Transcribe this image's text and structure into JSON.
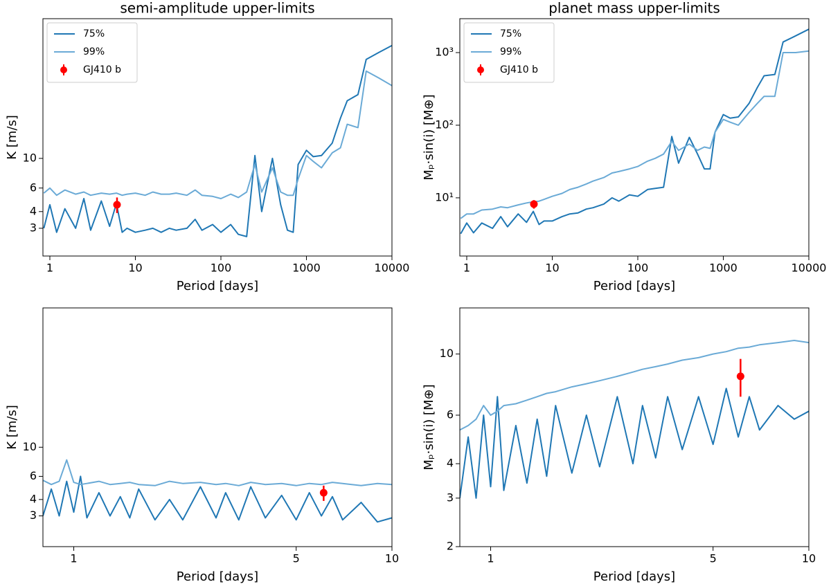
{
  "chart_data": [
    {
      "type": "line",
      "title": "semi-amplitude upper-limits",
      "xlabel": "Period [days]",
      "ylabel": "K [m/s]",
      "log": true,
      "legend": "upper left",
      "xlim": [
        0.83,
        10000
      ],
      "ylim": [
        1.86,
        111
      ],
      "xticks": [
        1,
        10,
        100,
        1000,
        10000
      ],
      "yticks": [
        3,
        4,
        6,
        10
      ],
      "x": [
        0.85,
        1,
        1.2,
        1.5,
        2,
        2.5,
        3,
        4,
        5,
        6,
        7,
        8,
        10,
        13,
        16,
        20,
        25,
        30,
        40,
        50,
        60,
        80,
        100,
        130,
        160,
        200,
        250,
        300,
        400,
        500,
        600,
        700,
        800,
        1000,
        1200,
        1500,
        2000,
        2500,
        3000,
        4000,
        5000,
        7000,
        10000
      ],
      "series": [
        {
          "name": "75%",
          "color": "#1f77b4",
          "values": [
            3.0,
            4.5,
            2.8,
            4.2,
            3.0,
            5.0,
            2.9,
            4.8,
            3.1,
            4.6,
            2.8,
            3.0,
            2.8,
            2.9,
            3.0,
            2.8,
            3.0,
            2.9,
            3.0,
            3.5,
            2.9,
            3.2,
            2.8,
            3.2,
            2.7,
            2.6,
            10.5,
            4.0,
            10,
            4.5,
            2.9,
            2.8,
            9,
            11.5,
            10.3,
            10.5,
            13,
            20,
            27,
            30,
            55,
            62,
            70
          ]
        },
        {
          "name": "99%",
          "color": "#6aaad6",
          "values": [
            5.5,
            6,
            5.3,
            5.8,
            5.4,
            5.6,
            5.3,
            5.5,
            5.4,
            5.5,
            5.3,
            5.4,
            5.5,
            5.3,
            5.6,
            5.4,
            5.4,
            5.5,
            5.3,
            5.8,
            5.3,
            5.2,
            5.0,
            5.4,
            5.1,
            5.6,
            9,
            5.6,
            8.5,
            5.6,
            5.3,
            5.3,
            7,
            10.5,
            9.5,
            8.5,
            11,
            12,
            18,
            17,
            45,
            40,
            35
          ]
        },
        {
          "name": "GJ410 b",
          "color": "#ff0000",
          "type": "errorbar",
          "x": [
            6.1
          ],
          "values": [
            4.5
          ],
          "errors": [
            0.6
          ]
        }
      ]
    },
    {
      "type": "line",
      "title": "planet mass upper-limits",
      "xlabel": "Period [days]",
      "ylabel": "Mₚ·sin(i) [M⊕]",
      "log": true,
      "legend": "upper left",
      "xlim": [
        0.83,
        10000
      ],
      "ylim": [
        1.58,
        2930
      ],
      "xticks": [
        1,
        10,
        100,
        1000,
        10000
      ],
      "yticks": [
        {
          "value": 10,
          "label": "10¹"
        },
        {
          "value": 100,
          "label": "10²"
        },
        {
          "value": 1000,
          "label": "10³"
        }
      ],
      "x": [
        0.85,
        1,
        1.2,
        1.5,
        2,
        2.5,
        3,
        4,
        5,
        6,
        7,
        8,
        10,
        13,
        16,
        20,
        25,
        30,
        40,
        50,
        60,
        80,
        100,
        130,
        160,
        200,
        250,
        300,
        400,
        500,
        600,
        700,
        800,
        1000,
        1200,
        1500,
        2000,
        2500,
        3000,
        4000,
        5000,
        7000,
        10000
      ],
      "series": [
        {
          "name": "75%",
          "color": "#1f77b4",
          "values": [
            3.2,
            4.5,
            3.3,
            4.5,
            3.8,
            5.5,
            4,
            6,
            4.6,
            6.5,
            4.3,
            4.8,
            4.8,
            5.5,
            6,
            6.2,
            7,
            7.3,
            8.2,
            10,
            9,
            11,
            10.5,
            13,
            13.5,
            14,
            70,
            30,
            68,
            40,
            25,
            25,
            80,
            140,
            125,
            130,
            200,
            330,
            480,
            500,
            1400,
            1700,
            2100
          ]
        },
        {
          "name": "99%",
          "color": "#6aaad6",
          "values": [
            5.2,
            6,
            6,
            6.8,
            7,
            7.5,
            7.3,
            8,
            8.5,
            8.8,
            9,
            9.5,
            10.5,
            11.5,
            13,
            14,
            15.5,
            17,
            19,
            22,
            23,
            25,
            27,
            32,
            35,
            40,
            60,
            45,
            55,
            45,
            50,
            48,
            80,
            120,
            110,
            100,
            150,
            200,
            250,
            250,
            1000,
            1000,
            1050
          ]
        },
        {
          "name": "GJ410 b",
          "color": "#ff0000",
          "type": "errorbar",
          "x": [
            6.1
          ],
          "values": [
            8.2
          ],
          "errors": [
            1.1
          ]
        }
      ]
    },
    {
      "type": "line",
      "xlabel": "Period [days]",
      "ylabel": "K [m/s]",
      "log": true,
      "xlim": [
        0.8,
        10
      ],
      "ylim": [
        1.75,
        115
      ],
      "xticks": [
        1,
        5,
        10
      ],
      "yticks": [
        3,
        4,
        6,
        10
      ],
      "x": [
        0.8,
        0.85,
        0.9,
        0.95,
        1,
        1.05,
        1.1,
        1.2,
        1.3,
        1.4,
        1.5,
        1.6,
        1.8,
        2,
        2.2,
        2.5,
        2.8,
        3,
        3.3,
        3.6,
        4,
        4.5,
        5,
        5.5,
        6,
        6.5,
        7,
        8,
        9,
        10
      ],
      "series": [
        {
          "color": "#1f77b4",
          "values": [
            3,
            4.8,
            3,
            5.5,
            3.2,
            6,
            2.9,
            4.5,
            3,
            4.2,
            2.9,
            4.8,
            2.8,
            4,
            2.8,
            5,
            2.9,
            4.5,
            2.8,
            5,
            2.9,
            4.3,
            2.8,
            4.5,
            3,
            4.2,
            2.8,
            3.8,
            2.7,
            2.9
          ]
        },
        {
          "color": "#6aaad6",
          "values": [
            5.6,
            5.2,
            5.5,
            8,
            5.4,
            5.2,
            5.3,
            5.5,
            5.2,
            5.3,
            5.4,
            5.2,
            5.1,
            5.5,
            5.3,
            5.4,
            5.2,
            5.3,
            5.1,
            5.4,
            5.2,
            5.3,
            5.1,
            5.3,
            5.2,
            5.4,
            5.3,
            5.1,
            5.3,
            5.2
          ]
        },
        {
          "color": "#ff0000",
          "type": "errorbar",
          "x": [
            6.1
          ],
          "values": [
            4.5
          ],
          "errors": [
            0.6
          ]
        }
      ]
    },
    {
      "type": "line",
      "xlabel": "Period [days]",
      "ylabel": "Mₚ·sin(i) [M⊕]",
      "log": true,
      "xlim": [
        0.8,
        10
      ],
      "ylim": [
        2,
        14.7
      ],
      "xticks": [
        1,
        5,
        10
      ],
      "yticks": [
        2,
        3,
        4,
        6,
        10
      ],
      "x": [
        0.8,
        0.85,
        0.9,
        0.95,
        1,
        1.05,
        1.1,
        1.2,
        1.3,
        1.4,
        1.5,
        1.6,
        1.8,
        2,
        2.2,
        2.5,
        2.8,
        3,
        3.3,
        3.6,
        4,
        4.5,
        5,
        5.5,
        6,
        6.5,
        7,
        8,
        9,
        10
      ],
      "series": [
        {
          "color": "#1f77b4",
          "values": [
            3,
            5,
            3,
            6,
            3.3,
            7,
            3.2,
            5.5,
            3.4,
            5.8,
            3.6,
            6.5,
            3.7,
            6,
            3.9,
            7,
            4,
            6.5,
            4.2,
            7,
            4.5,
            7,
            4.7,
            7.5,
            5,
            7,
            5.3,
            6.5,
            5.8,
            6.2
          ]
        },
        {
          "color": "#6aaad6",
          "values": [
            5.3,
            5.5,
            5.8,
            6.5,
            6,
            6.2,
            6.5,
            6.6,
            6.8,
            7,
            7.2,
            7.3,
            7.6,
            7.8,
            8,
            8.3,
            8.6,
            8.8,
            9,
            9.2,
            9.5,
            9.7,
            10,
            10.2,
            10.5,
            10.6,
            10.8,
            11,
            11.2,
            11
          ]
        },
        {
          "color": "#ff0000",
          "type": "errorbar",
          "x": [
            6.1
          ],
          "values": [
            8.3
          ],
          "errors": [
            1.3
          ]
        }
      ]
    }
  ]
}
